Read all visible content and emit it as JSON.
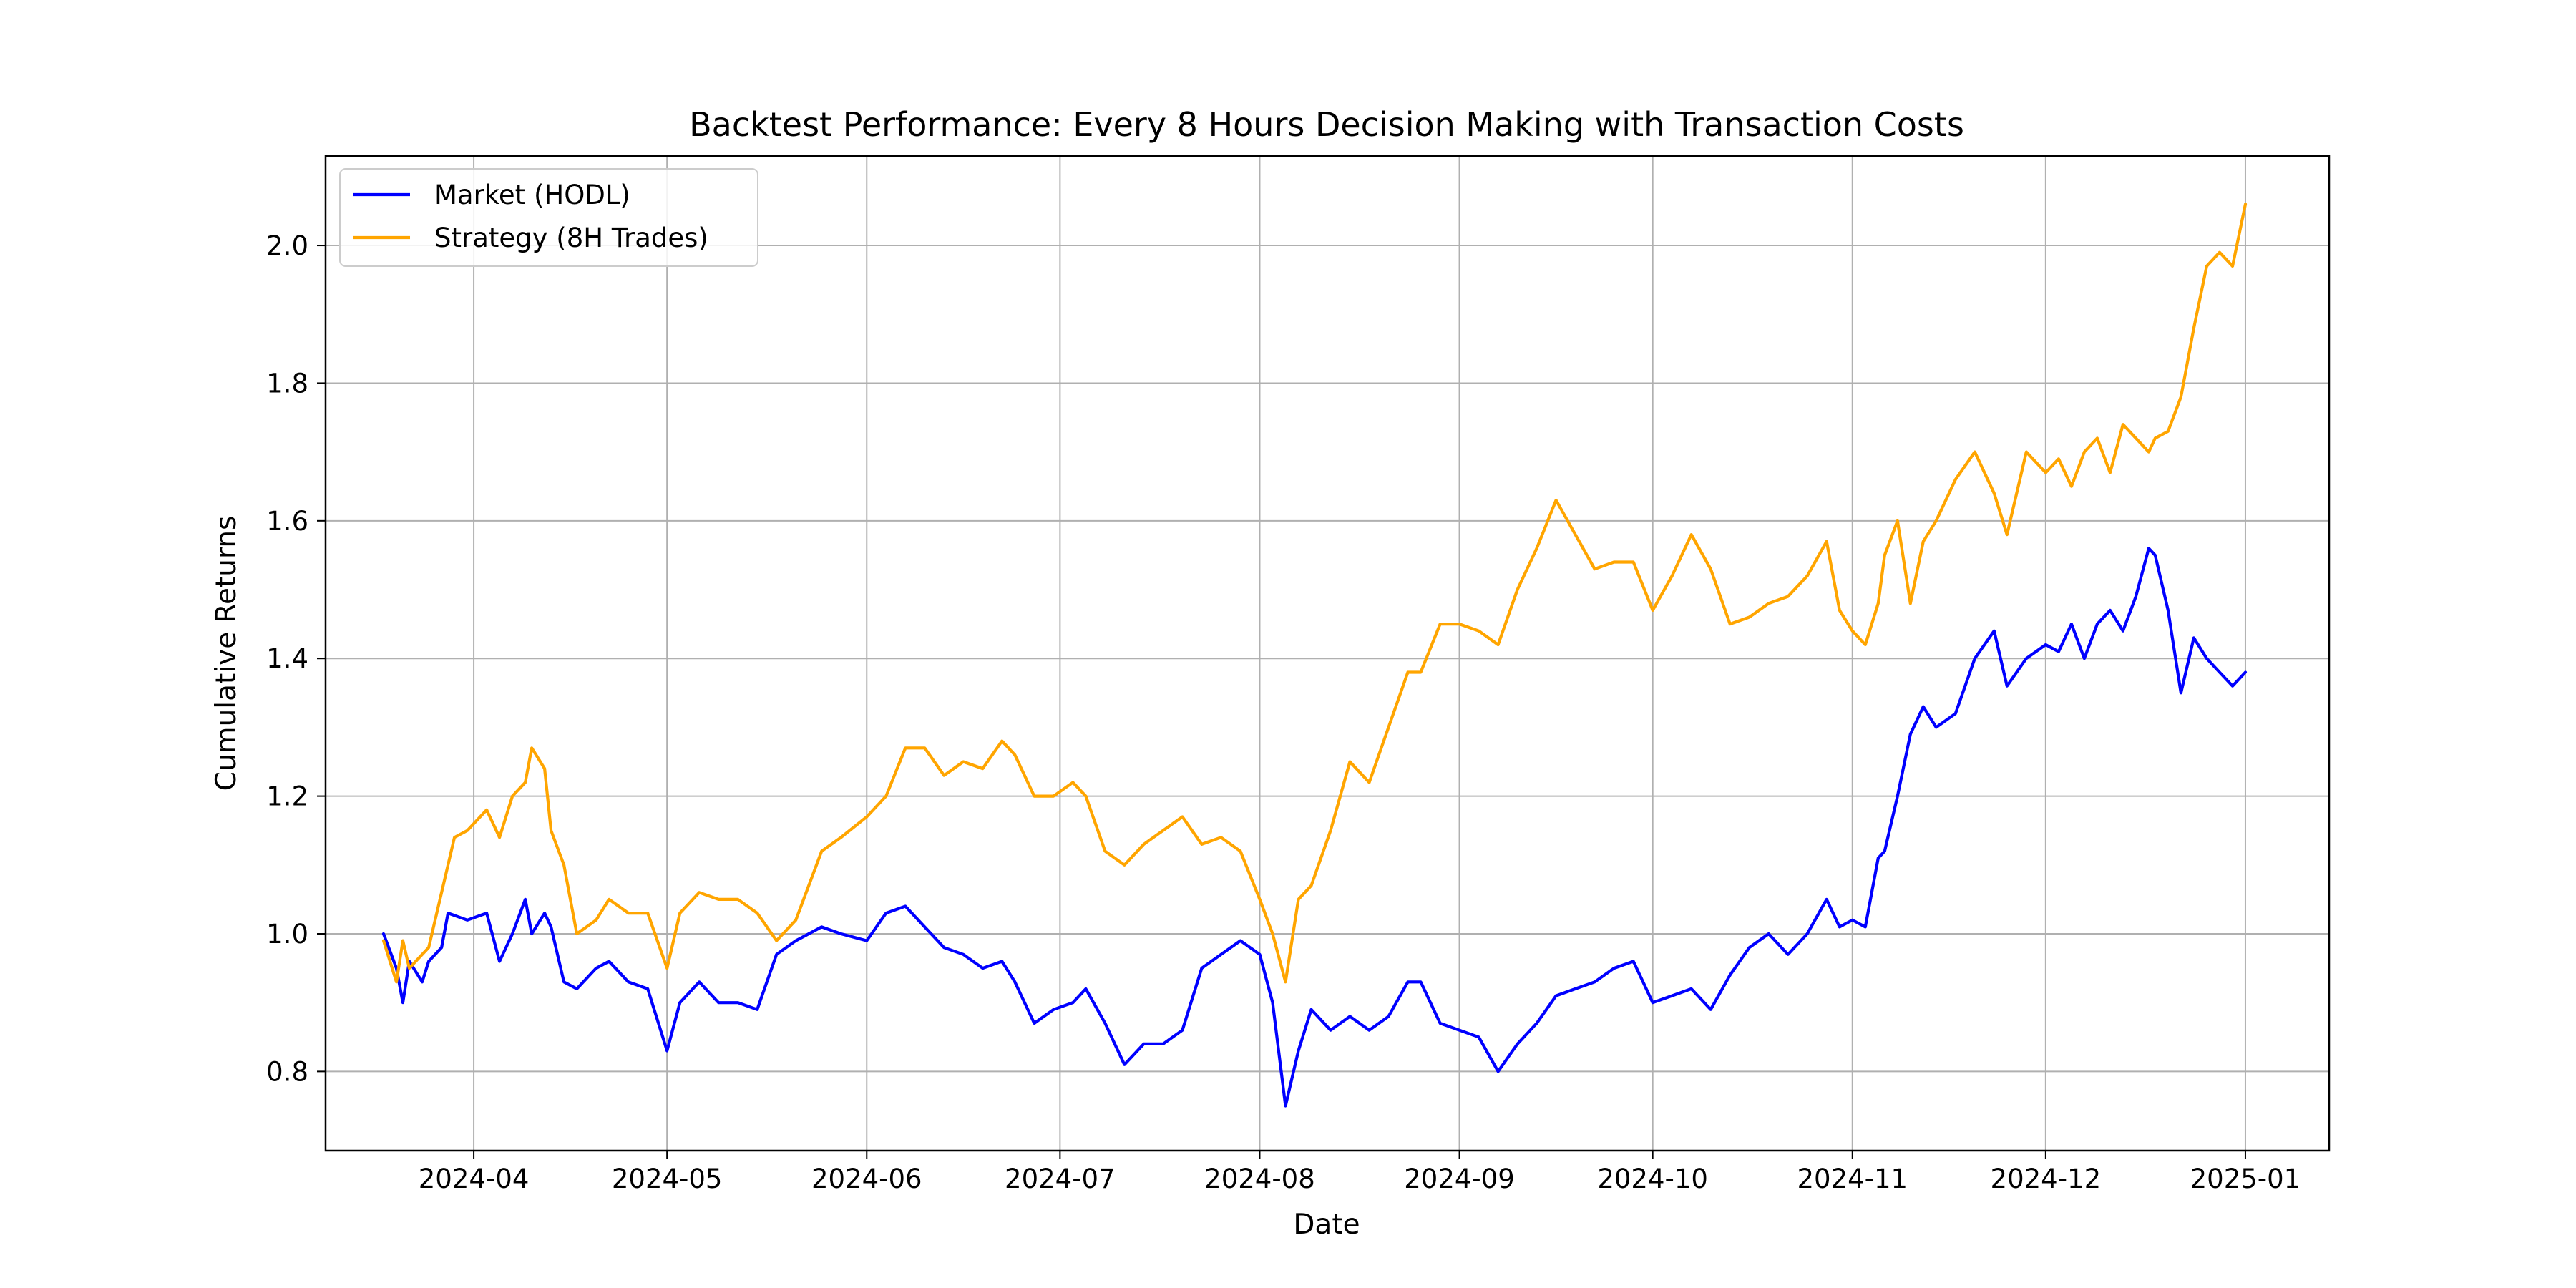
{
  "chart_data": {
    "type": "line",
    "title": "Backtest Performance: Every 8 Hours Decision Making with Transaction Costs",
    "xlabel": "Date",
    "ylabel": "Cumulative Returns",
    "xlim": [
      "2024-03-09",
      "2025-01-14"
    ],
    "ylim": [
      0.685,
      2.13
    ],
    "grid": true,
    "legend_position": "top-left",
    "x_ticks": [
      "2024-04-01",
      "2024-05-01",
      "2024-06-01",
      "2024-07-01",
      "2024-08-01",
      "2024-09-01",
      "2024-10-01",
      "2024-11-01",
      "2024-12-01",
      "2025-01-01"
    ],
    "x_tick_labels": [
      "2024-04",
      "2024-05",
      "2024-06",
      "2024-07",
      "2024-08",
      "2024-09",
      "2024-10",
      "2024-11",
      "2024-12",
      "2025-01"
    ],
    "y_ticks": [
      0.8,
      1.0,
      1.2,
      1.4,
      1.6,
      1.8,
      2.0
    ],
    "y_tick_labels": [
      "0.8",
      "1.0",
      "1.2",
      "1.4",
      "1.6",
      "1.8",
      "2.0"
    ],
    "series": [
      {
        "name": "Market (HODL)",
        "color": "#0000ff",
        "x": [
          "2024-03-18",
          "2024-03-20",
          "2024-03-21",
          "2024-03-22",
          "2024-03-24",
          "2024-03-25",
          "2024-03-27",
          "2024-03-28",
          "2024-03-31",
          "2024-04-03",
          "2024-04-05",
          "2024-04-07",
          "2024-04-09",
          "2024-04-10",
          "2024-04-12",
          "2024-04-13",
          "2024-04-15",
          "2024-04-17",
          "2024-04-20",
          "2024-04-22",
          "2024-04-25",
          "2024-04-28",
          "2024-05-01",
          "2024-05-03",
          "2024-05-06",
          "2024-05-09",
          "2024-05-12",
          "2024-05-15",
          "2024-05-18",
          "2024-05-21",
          "2024-05-25",
          "2024-05-28",
          "2024-06-01",
          "2024-06-04",
          "2024-06-07",
          "2024-06-10",
          "2024-06-13",
          "2024-06-16",
          "2024-06-19",
          "2024-06-22",
          "2024-06-24",
          "2024-06-27",
          "2024-06-30",
          "2024-07-03",
          "2024-07-05",
          "2024-07-08",
          "2024-07-11",
          "2024-07-14",
          "2024-07-17",
          "2024-07-20",
          "2024-07-23",
          "2024-07-26",
          "2024-07-29",
          "2024-08-01",
          "2024-08-03",
          "2024-08-05",
          "2024-08-07",
          "2024-08-09",
          "2024-08-12",
          "2024-08-15",
          "2024-08-18",
          "2024-08-21",
          "2024-08-24",
          "2024-08-26",
          "2024-08-29",
          "2024-09-01",
          "2024-09-04",
          "2024-09-07",
          "2024-09-10",
          "2024-09-13",
          "2024-09-16",
          "2024-09-19",
          "2024-09-22",
          "2024-09-25",
          "2024-09-28",
          "2024-10-01",
          "2024-10-04",
          "2024-10-07",
          "2024-10-10",
          "2024-10-13",
          "2024-10-16",
          "2024-10-19",
          "2024-10-22",
          "2024-10-25",
          "2024-10-28",
          "2024-10-30",
          "2024-11-01",
          "2024-11-03",
          "2024-11-05",
          "2024-11-06",
          "2024-11-08",
          "2024-11-10",
          "2024-11-12",
          "2024-11-14",
          "2024-11-17",
          "2024-11-20",
          "2024-11-23",
          "2024-11-25",
          "2024-11-28",
          "2024-12-01",
          "2024-12-03",
          "2024-12-05",
          "2024-12-07",
          "2024-12-09",
          "2024-12-11",
          "2024-12-13",
          "2024-12-15",
          "2024-12-17",
          "2024-12-18",
          "2024-12-20",
          "2024-12-22",
          "2024-12-24",
          "2024-12-26",
          "2024-12-28",
          "2024-12-30",
          "2025-01-01"
        ],
        "values": [
          1.0,
          0.95,
          0.9,
          0.96,
          0.93,
          0.96,
          0.98,
          1.03,
          1.02,
          1.03,
          0.96,
          1.0,
          1.05,
          1.0,
          1.03,
          1.01,
          0.93,
          0.92,
          0.95,
          0.96,
          0.93,
          0.92,
          0.83,
          0.9,
          0.93,
          0.9,
          0.9,
          0.89,
          0.97,
          0.99,
          1.01,
          1.0,
          0.99,
          1.03,
          1.04,
          1.01,
          0.98,
          0.97,
          0.95,
          0.96,
          0.93,
          0.87,
          0.89,
          0.9,
          0.92,
          0.87,
          0.81,
          0.84,
          0.84,
          0.86,
          0.95,
          0.97,
          0.99,
          0.97,
          0.9,
          0.75,
          0.83,
          0.89,
          0.86,
          0.88,
          0.86,
          0.88,
          0.93,
          0.93,
          0.87,
          0.86,
          0.85,
          0.8,
          0.84,
          0.87,
          0.91,
          0.92,
          0.93,
          0.95,
          0.96,
          0.9,
          0.91,
          0.92,
          0.89,
          0.94,
          0.98,
          1.0,
          0.97,
          1.0,
          1.05,
          1.01,
          1.02,
          1.01,
          1.11,
          1.12,
          1.2,
          1.29,
          1.33,
          1.3,
          1.32,
          1.4,
          1.44,
          1.36,
          1.4,
          1.42,
          1.41,
          1.45,
          1.4,
          1.45,
          1.47,
          1.44,
          1.49,
          1.56,
          1.55,
          1.47,
          1.35,
          1.43,
          1.4,
          1.38,
          1.36,
          1.38
        ]
      },
      {
        "name": "Strategy (8H Trades)",
        "color": "#ffa500",
        "x": [
          "2024-03-18",
          "2024-03-20",
          "2024-03-21",
          "2024-03-22",
          "2024-03-24",
          "2024-03-25",
          "2024-03-27",
          "2024-03-29",
          "2024-03-31",
          "2024-04-03",
          "2024-04-05",
          "2024-04-07",
          "2024-04-09",
          "2024-04-10",
          "2024-04-12",
          "2024-04-13",
          "2024-04-15",
          "2024-04-17",
          "2024-04-20",
          "2024-04-22",
          "2024-04-25",
          "2024-04-28",
          "2024-05-01",
          "2024-05-03",
          "2024-05-06",
          "2024-05-09",
          "2024-05-12",
          "2024-05-15",
          "2024-05-18",
          "2024-05-21",
          "2024-05-25",
          "2024-05-28",
          "2024-06-01",
          "2024-06-04",
          "2024-06-07",
          "2024-06-10",
          "2024-06-13",
          "2024-06-16",
          "2024-06-19",
          "2024-06-22",
          "2024-06-24",
          "2024-06-27",
          "2024-06-30",
          "2024-07-03",
          "2024-07-05",
          "2024-07-08",
          "2024-07-11",
          "2024-07-14",
          "2024-07-17",
          "2024-07-20",
          "2024-07-23",
          "2024-07-26",
          "2024-07-29",
          "2024-08-01",
          "2024-08-03",
          "2024-08-05",
          "2024-08-07",
          "2024-08-09",
          "2024-08-12",
          "2024-08-15",
          "2024-08-18",
          "2024-08-21",
          "2024-08-24",
          "2024-08-26",
          "2024-08-29",
          "2024-09-01",
          "2024-09-04",
          "2024-09-07",
          "2024-09-10",
          "2024-09-13",
          "2024-09-16",
          "2024-09-19",
          "2024-09-22",
          "2024-09-25",
          "2024-09-28",
          "2024-10-01",
          "2024-10-04",
          "2024-10-07",
          "2024-10-10",
          "2024-10-13",
          "2024-10-16",
          "2024-10-19",
          "2024-10-22",
          "2024-10-25",
          "2024-10-28",
          "2024-10-30",
          "2024-11-01",
          "2024-11-03",
          "2024-11-05",
          "2024-11-06",
          "2024-11-08",
          "2024-11-10",
          "2024-11-12",
          "2024-11-14",
          "2024-11-17",
          "2024-11-20",
          "2024-11-23",
          "2024-11-25",
          "2024-11-28",
          "2024-12-01",
          "2024-12-03",
          "2024-12-05",
          "2024-12-07",
          "2024-12-09",
          "2024-12-11",
          "2024-12-13",
          "2024-12-15",
          "2024-12-17",
          "2024-12-18",
          "2024-12-20",
          "2024-12-22",
          "2024-12-24",
          "2024-12-26",
          "2024-12-28",
          "2024-12-30",
          "2025-01-01"
        ],
        "values": [
          0.99,
          0.93,
          0.99,
          0.95,
          0.97,
          0.98,
          1.06,
          1.14,
          1.15,
          1.18,
          1.14,
          1.2,
          1.22,
          1.27,
          1.24,
          1.15,
          1.1,
          1.0,
          1.02,
          1.05,
          1.03,
          1.03,
          0.95,
          1.03,
          1.06,
          1.05,
          1.05,
          1.03,
          0.99,
          1.02,
          1.12,
          1.14,
          1.17,
          1.2,
          1.27,
          1.27,
          1.23,
          1.25,
          1.24,
          1.28,
          1.26,
          1.2,
          1.2,
          1.22,
          1.2,
          1.12,
          1.1,
          1.13,
          1.15,
          1.17,
          1.13,
          1.14,
          1.12,
          1.05,
          1.0,
          0.93,
          1.05,
          1.07,
          1.15,
          1.25,
          1.22,
          1.3,
          1.38,
          1.38,
          1.45,
          1.45,
          1.44,
          1.42,
          1.5,
          1.56,
          1.63,
          1.58,
          1.53,
          1.54,
          1.54,
          1.47,
          1.52,
          1.58,
          1.53,
          1.45,
          1.46,
          1.48,
          1.49,
          1.52,
          1.57,
          1.47,
          1.44,
          1.42,
          1.48,
          1.55,
          1.6,
          1.48,
          1.57,
          1.6,
          1.66,
          1.7,
          1.64,
          1.58,
          1.7,
          1.67,
          1.69,
          1.65,
          1.7,
          1.72,
          1.67,
          1.74,
          1.72,
          1.7,
          1.72,
          1.73,
          1.78,
          1.88,
          1.97,
          1.99,
          1.97,
          2.06
        ]
      }
    ]
  }
}
